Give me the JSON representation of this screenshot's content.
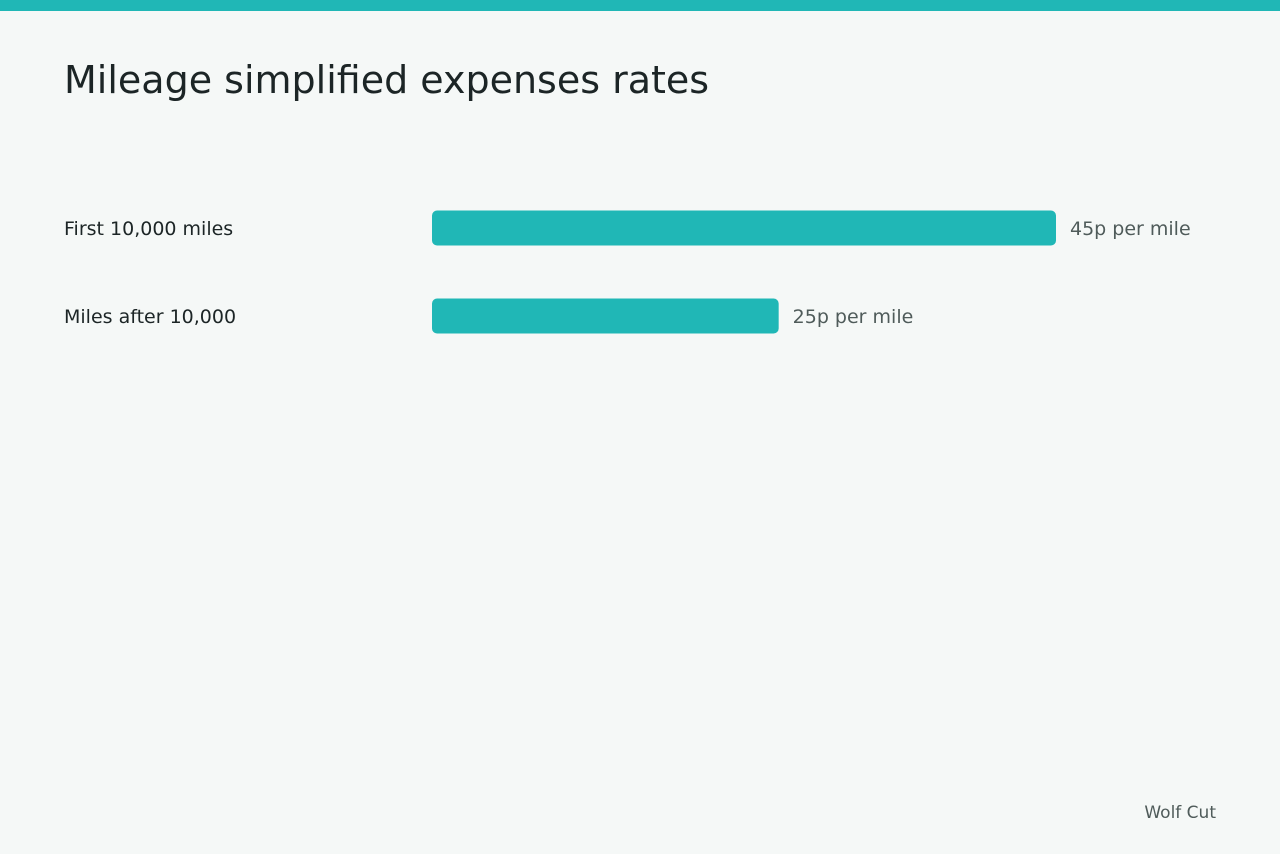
{
  "colors": {
    "accent": "#20b7b6",
    "background": "#f5f8f7"
  },
  "chart_data": {
    "type": "bar",
    "orientation": "horizontal",
    "title": "Mileage simplified expenses rates",
    "categories": [
      "First 10,000 miles",
      "Miles after 10,000"
    ],
    "values": [
      45,
      25
    ],
    "value_labels": [
      "45p per mile",
      "25p per mile"
    ],
    "unit": "p per mile",
    "xlim": [
      0,
      45
    ],
    "grid": false,
    "legend": "none"
  },
  "credit": "Wolf Cut"
}
